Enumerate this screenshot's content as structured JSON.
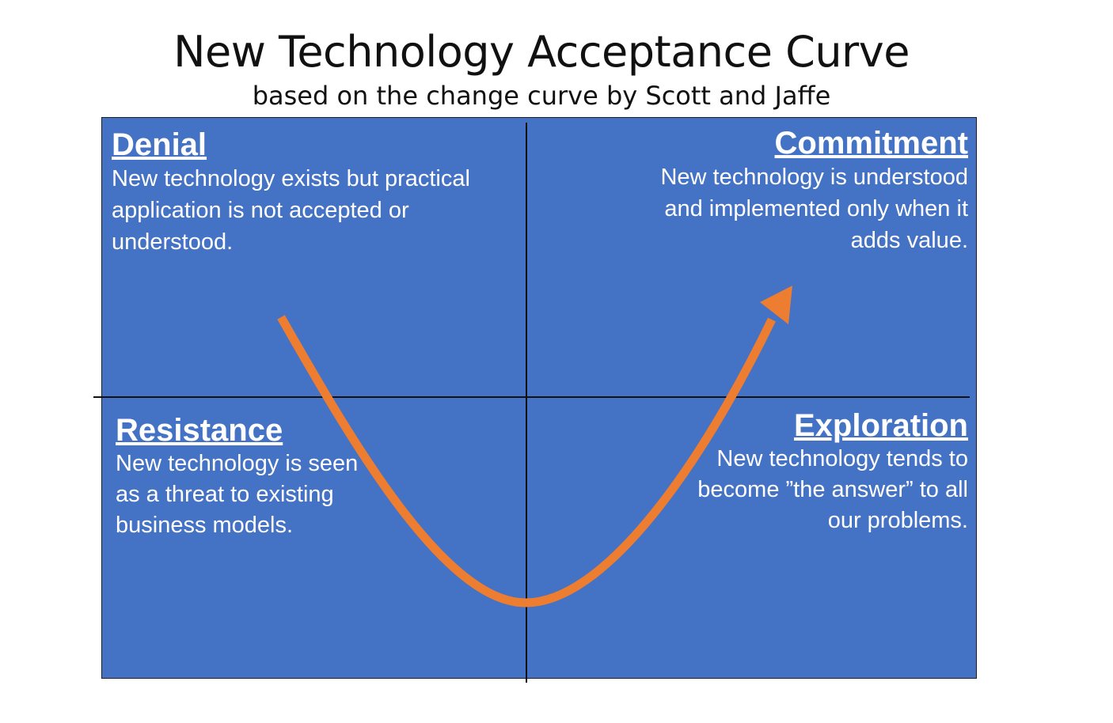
{
  "title": "New Technology Acceptance Curve",
  "subtitle": "based on the change curve by Scott and Jaffe",
  "quadrants": {
    "denial": {
      "heading": "Denial",
      "desc_lines": [
        "New technology exists but practical",
        "application is not accepted or",
        "understood."
      ]
    },
    "commitment": {
      "heading": "Commitment",
      "desc_lines": [
        "New technology is understood",
        "and implemented only when it",
        "adds value."
      ]
    },
    "resistance": {
      "heading": "Resistance",
      "desc_lines": [
        "New technology is seen",
        "as a threat to existing",
        "business models."
      ]
    },
    "exploration": {
      "heading": "Exploration",
      "desc_lines": [
        "New technology tends to",
        "become ”the answer” to all",
        "our problems."
      ]
    }
  },
  "colors": {
    "panel": "#4472c4",
    "curve": "#ed7d31",
    "text": "#ffffff"
  }
}
